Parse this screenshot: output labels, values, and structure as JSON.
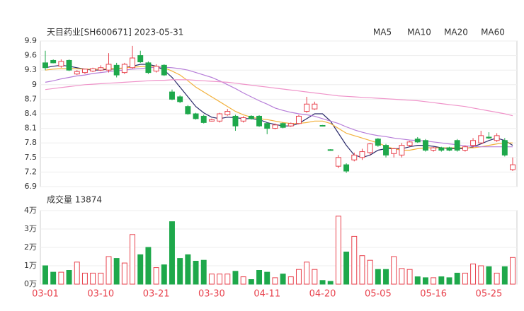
{
  "chart_data": [
    {
      "type": "candlestick",
      "title": "天目药业[SH600671] 2023-05-31",
      "up_color": "#e8424d",
      "down_color": "#1ea84b",
      "open": [
        9.45,
        9.5,
        9.38,
        9.5,
        9.22,
        9.25,
        9.28,
        9.3,
        9.3,
        9.4,
        9.25,
        9.35,
        9.6,
        9.45,
        9.28,
        9.4,
        8.85,
        8.75,
        8.55,
        8.4,
        8.35,
        8.25,
        8.25,
        8.38,
        8.35,
        8.25,
        8.35,
        8.35,
        8.2,
        8.1,
        8.2,
        8.15,
        8.2,
        8.45,
        8.5,
        8.16,
        7.66,
        7.32,
        7.35,
        7.45,
        7.5,
        7.6,
        7.88,
        7.75,
        7.58,
        7.55,
        7.75,
        7.88,
        7.85,
        7.65,
        7.7,
        7.7,
        7.85,
        7.65,
        7.75,
        7.8,
        7.92,
        7.85,
        7.85,
        7.25
      ],
      "high": [
        9.7,
        9.52,
        9.52,
        9.52,
        9.3,
        9.33,
        9.35,
        9.4,
        9.65,
        9.45,
        9.45,
        9.8,
        9.7,
        9.48,
        9.42,
        9.42,
        8.9,
        8.78,
        8.58,
        8.42,
        8.38,
        8.3,
        8.42,
        8.5,
        8.38,
        8.35,
        8.37,
        8.37,
        8.22,
        8.2,
        8.22,
        8.22,
        8.38,
        8.75,
        8.65,
        8.17,
        7.67,
        7.55,
        7.38,
        7.6,
        7.68,
        7.8,
        7.9,
        7.78,
        7.7,
        7.8,
        7.84,
        7.92,
        7.88,
        7.72,
        7.72,
        7.72,
        7.88,
        7.75,
        7.9,
        8.05,
        8.02,
        8.0,
        7.9,
        7.5
      ],
      "low": [
        9.3,
        9.44,
        9.35,
        9.28,
        9.2,
        9.22,
        9.26,
        9.28,
        9.25,
        9.15,
        9.22,
        9.33,
        9.45,
        9.22,
        9.25,
        9.18,
        8.68,
        8.62,
        8.38,
        8.28,
        8.2,
        8.24,
        8.22,
        8.36,
        8.05,
        8.22,
        8.28,
        8.13,
        7.98,
        8.08,
        8.1,
        8.13,
        8.18,
        8.42,
        8.48,
        8.14,
        7.64,
        7.28,
        7.18,
        7.42,
        7.45,
        7.55,
        7.72,
        7.5,
        7.5,
        7.5,
        7.72,
        7.8,
        7.62,
        7.62,
        7.62,
        7.63,
        7.62,
        7.62,
        7.7,
        7.78,
        7.88,
        7.82,
        7.52,
        7.22
      ],
      "close": [
        9.35,
        9.45,
        9.48,
        9.3,
        9.27,
        9.32,
        9.33,
        9.35,
        9.42,
        9.2,
        9.42,
        9.55,
        9.47,
        9.25,
        9.38,
        9.2,
        8.7,
        8.65,
        8.4,
        8.3,
        8.22,
        8.28,
        8.4,
        8.45,
        8.15,
        8.32,
        8.3,
        8.15,
        8.1,
        8.17,
        8.12,
        8.2,
        8.35,
        8.6,
        8.6,
        8.15,
        7.65,
        7.5,
        7.22,
        7.55,
        7.62,
        7.78,
        7.75,
        7.55,
        7.68,
        7.75,
        7.82,
        7.82,
        7.65,
        7.7,
        7.65,
        7.65,
        7.65,
        7.72,
        7.85,
        7.95,
        7.9,
        7.95,
        7.55,
        7.35
      ],
      "series": [
        {
          "name": "MA5",
          "color": "#2a2a6a",
          "values": [
            9.35,
            9.38,
            9.4,
            9.38,
            9.35,
            9.32,
            9.3,
            9.3,
            9.32,
            9.32,
            9.35,
            9.38,
            9.42,
            9.42,
            9.38,
            9.3,
            9.15,
            8.95,
            8.75,
            8.55,
            8.42,
            8.33,
            8.3,
            8.33,
            8.32,
            8.3,
            8.3,
            8.28,
            8.22,
            8.18,
            8.15,
            8.15,
            8.2,
            8.3,
            8.4,
            8.4,
            8.25,
            8.0,
            7.75,
            7.55,
            7.5,
            7.55,
            7.65,
            7.68,
            7.68,
            7.68,
            7.72,
            7.75,
            7.75,
            7.73,
            7.7,
            7.68,
            7.68,
            7.68,
            7.72,
            7.78,
            7.85,
            7.9,
            7.85,
            7.75
          ]
        },
        {
          "name": "MA10",
          "color": "#f2b13c",
          "values": [
            9.3,
            9.32,
            9.33,
            9.33,
            9.33,
            9.32,
            9.32,
            9.32,
            9.33,
            9.33,
            9.35,
            9.36,
            9.37,
            9.38,
            9.38,
            9.35,
            9.28,
            9.2,
            9.08,
            8.95,
            8.85,
            8.75,
            8.65,
            8.55,
            8.45,
            8.38,
            8.33,
            8.3,
            8.28,
            8.25,
            8.22,
            8.2,
            8.2,
            8.22,
            8.25,
            8.25,
            8.2,
            8.1,
            8.0,
            7.95,
            7.9,
            7.85,
            7.8,
            7.73,
            7.68,
            7.65,
            7.65,
            7.68,
            7.7,
            7.7,
            7.7,
            7.7,
            7.7,
            7.7,
            7.7,
            7.72,
            7.75,
            7.78,
            7.8,
            7.8
          ]
        },
        {
          "name": "MA20",
          "color": "#b67dd8",
          "values": [
            9.05,
            9.08,
            9.12,
            9.15,
            9.18,
            9.2,
            9.23,
            9.25,
            9.27,
            9.29,
            9.3,
            9.32,
            9.33,
            9.35,
            9.36,
            9.36,
            9.35,
            9.33,
            9.3,
            9.25,
            9.2,
            9.15,
            9.08,
            9.0,
            8.92,
            8.83,
            8.75,
            8.67,
            8.6,
            8.52,
            8.47,
            8.43,
            8.4,
            8.38,
            8.35,
            8.3,
            8.25,
            8.2,
            8.13,
            8.07,
            8.02,
            7.98,
            7.95,
            7.93,
            7.9,
            7.88,
            7.86,
            7.85,
            7.84,
            7.82,
            7.8,
            7.78,
            7.76,
            7.74,
            7.73,
            7.72,
            7.72,
            7.72,
            7.72,
            7.72
          ]
        },
        {
          "name": "MA60",
          "color": "#ef93c9",
          "values": [
            8.9,
            8.92,
            8.94,
            8.96,
            8.98,
            9.0,
            9.01,
            9.02,
            9.03,
            9.04,
            9.05,
            9.06,
            9.07,
            9.08,
            9.09,
            9.09,
            9.1,
            9.1,
            9.1,
            9.09,
            9.08,
            9.07,
            9.06,
            9.05,
            9.03,
            9.01,
            8.99,
            8.97,
            8.95,
            8.93,
            8.91,
            8.89,
            8.87,
            8.85,
            8.83,
            8.81,
            8.79,
            8.77,
            8.76,
            8.75,
            8.74,
            8.73,
            8.72,
            8.71,
            8.7,
            8.69,
            8.68,
            8.67,
            8.65,
            8.63,
            8.61,
            8.59,
            8.57,
            8.55,
            8.52,
            8.49,
            8.46,
            8.43,
            8.4,
            8.36
          ]
        }
      ],
      "ylim": [
        6.9,
        9.9
      ],
      "yticks": [
        9.9,
        9.6,
        9.3,
        9,
        8.7,
        8.4,
        8.1,
        7.8,
        7.5,
        7.2,
        6.9
      ],
      "grid": true
    },
    {
      "type": "bar",
      "title": "成交量 13874",
      "categories": [
        "03-01",
        null,
        null,
        null,
        null,
        null,
        null,
        "03-10",
        null,
        null,
        null,
        null,
        null,
        null,
        "03-21",
        null,
        null,
        null,
        null,
        null,
        null,
        "03-30",
        null,
        null,
        null,
        null,
        null,
        null,
        "04-11",
        null,
        null,
        null,
        null,
        null,
        null,
        "04-20",
        null,
        null,
        null,
        null,
        null,
        null,
        "05-05",
        null,
        null,
        null,
        null,
        null,
        null,
        "05-16",
        null,
        null,
        null,
        null,
        null,
        null,
        "05-25",
        null,
        null,
        null
      ],
      "values": [
        1.0,
        0.65,
        0.65,
        0.75,
        1.2,
        0.6,
        0.6,
        0.6,
        1.5,
        1.4,
        1.15,
        2.7,
        1.6,
        2.0,
        0.9,
        1.05,
        3.4,
        1.4,
        1.6,
        1.25,
        1.3,
        0.55,
        0.55,
        0.55,
        0.7,
        0.4,
        0.25,
        0.75,
        0.65,
        0.35,
        0.55,
        0.4,
        0.8,
        1.2,
        0.8,
        0.2,
        0.15,
        3.7,
        1.75,
        2.6,
        1.55,
        1.3,
        0.8,
        0.8,
        1.5,
        0.85,
        0.8,
        0.4,
        0.35,
        0.35,
        0.4,
        0.35,
        0.6,
        0.6,
        1.1,
        1.0,
        0.95,
        0.6,
        0.95,
        1.45
      ],
      "ylim": [
        0,
        4
      ],
      "yticks": [
        {
          "value": 4,
          "label": "4万"
        },
        {
          "value": 3,
          "label": "3万"
        },
        {
          "value": 2,
          "label": "2万"
        },
        {
          "value": 1,
          "label": "1万"
        },
        {
          "value": 0,
          "label": "0万"
        }
      ],
      "grid": true
    }
  ]
}
